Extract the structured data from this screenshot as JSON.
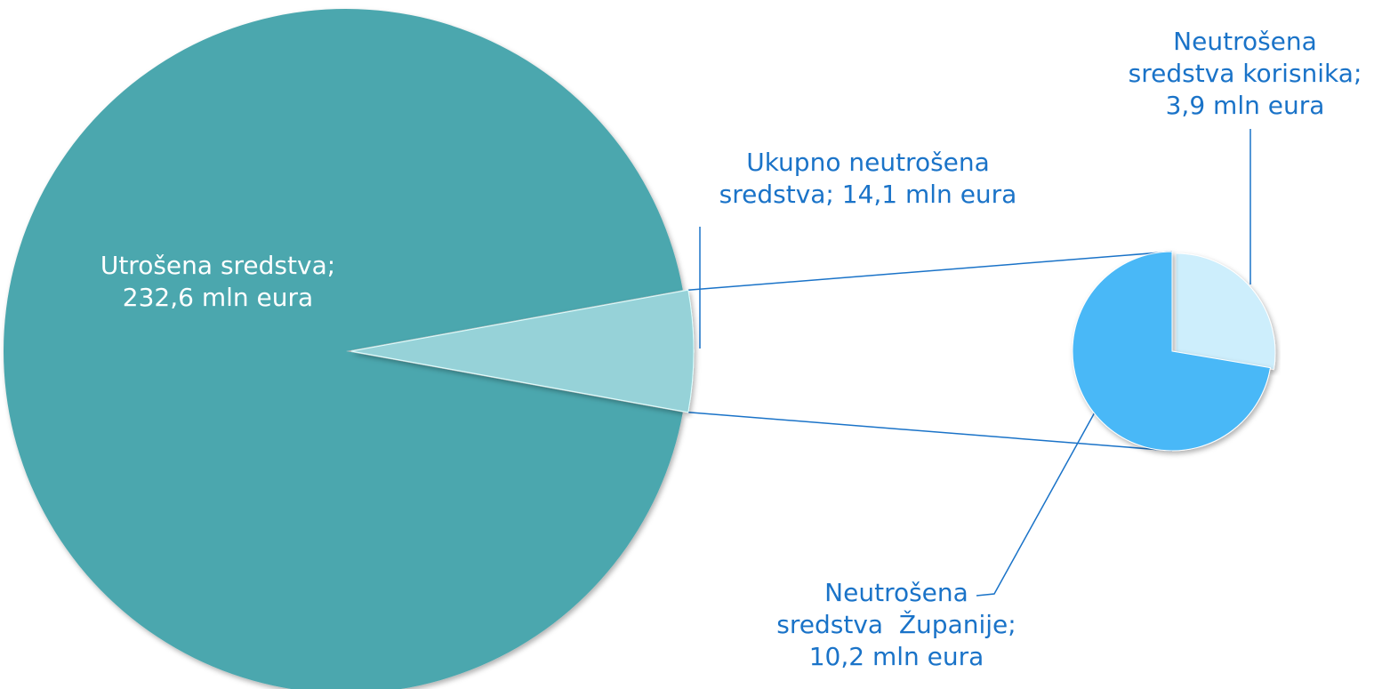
{
  "chart_data": {
    "type": "pie-of-pie",
    "values": [
      232.6,
      14.1
    ],
    "labels": [
      [
        "Utrošena sredstva;",
        "232,6 mln eura"
      ],
      [
        "Ukupno neutrošena",
        "sredstva; 14,1 mln eura"
      ]
    ],
    "colors": [
      "#4ba7ae",
      "#96d2d8"
    ],
    "label_colors": [
      "#ffffff",
      "#1a73c8"
    ],
    "secondary": {
      "values": [
        3.9,
        10.2
      ],
      "labels": [
        [
          "Neutrošena",
          "sredstva korisnika;",
          "3,9 mln eura"
        ],
        [
          "Neutrošena",
          "sredstva  Županije;",
          "10,2 mln eura"
        ]
      ],
      "colors": [
        "#cdeefc",
        "#4ab8f7"
      ],
      "label_color": "#1a73c8"
    }
  }
}
